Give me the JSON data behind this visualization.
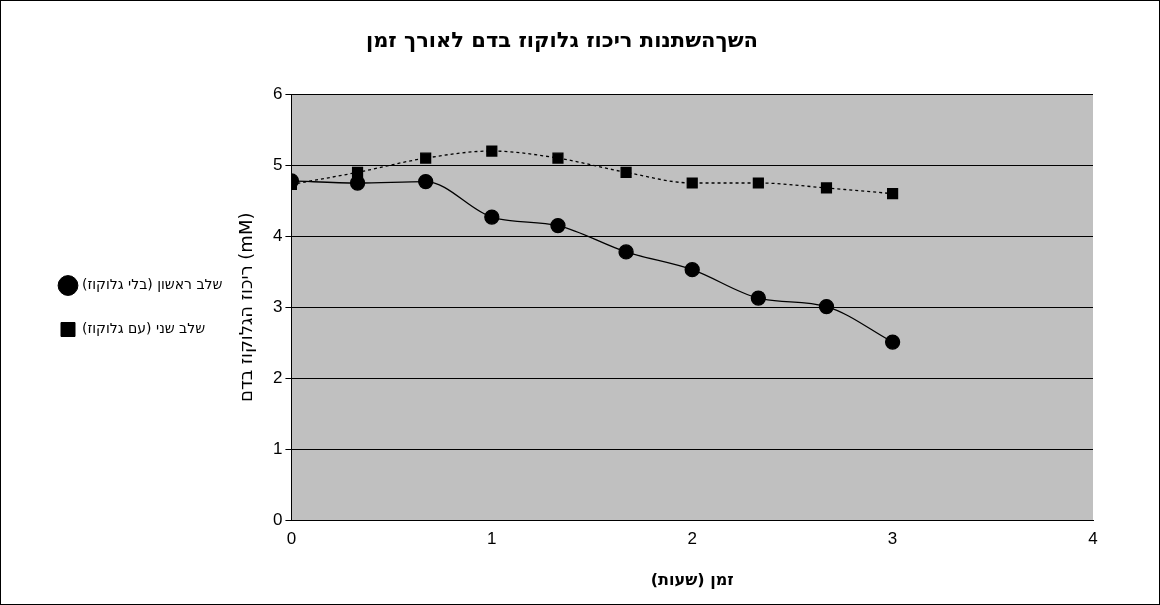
{
  "chart_data": {
    "type": "line",
    "title": "השךהשתנות ריכוז גלוקוז בדם לאורך זמן",
    "xlabel": "זמן (שעות)",
    "ylabel": "ריכוז הגלוקוז בדם (mM)",
    "x": [
      0,
      0.33,
      0.67,
      1,
      1.33,
      1.67,
      2,
      2.33,
      2.67,
      3
    ],
    "series": [
      {
        "name": "שלב ראשון (בלי גלוקוז)",
        "color": "#000000",
        "marker": "circle",
        "line_style": "solid",
        "values": [
          4.78,
          4.75,
          4.77,
          4.27,
          4.15,
          3.78,
          3.53,
          3.13,
          3.01,
          2.51
        ]
      },
      {
        "name": "שלב שני (עם גלוקוז)",
        "color": "#000000",
        "marker": "square",
        "line_style": "dotted",
        "values": [
          4.73,
          4.9,
          5.1,
          5.2,
          5.1,
          4.9,
          4.75,
          4.75,
          4.68,
          4.6
        ]
      }
    ],
    "xlim": [
      0,
      4
    ],
    "xticks": [
      0,
      1,
      2,
      3,
      4
    ],
    "ylim": [
      0,
      6
    ],
    "yticks": [
      0,
      1,
      2,
      3,
      4,
      5,
      6
    ],
    "grid": "y",
    "legend": "left"
  }
}
